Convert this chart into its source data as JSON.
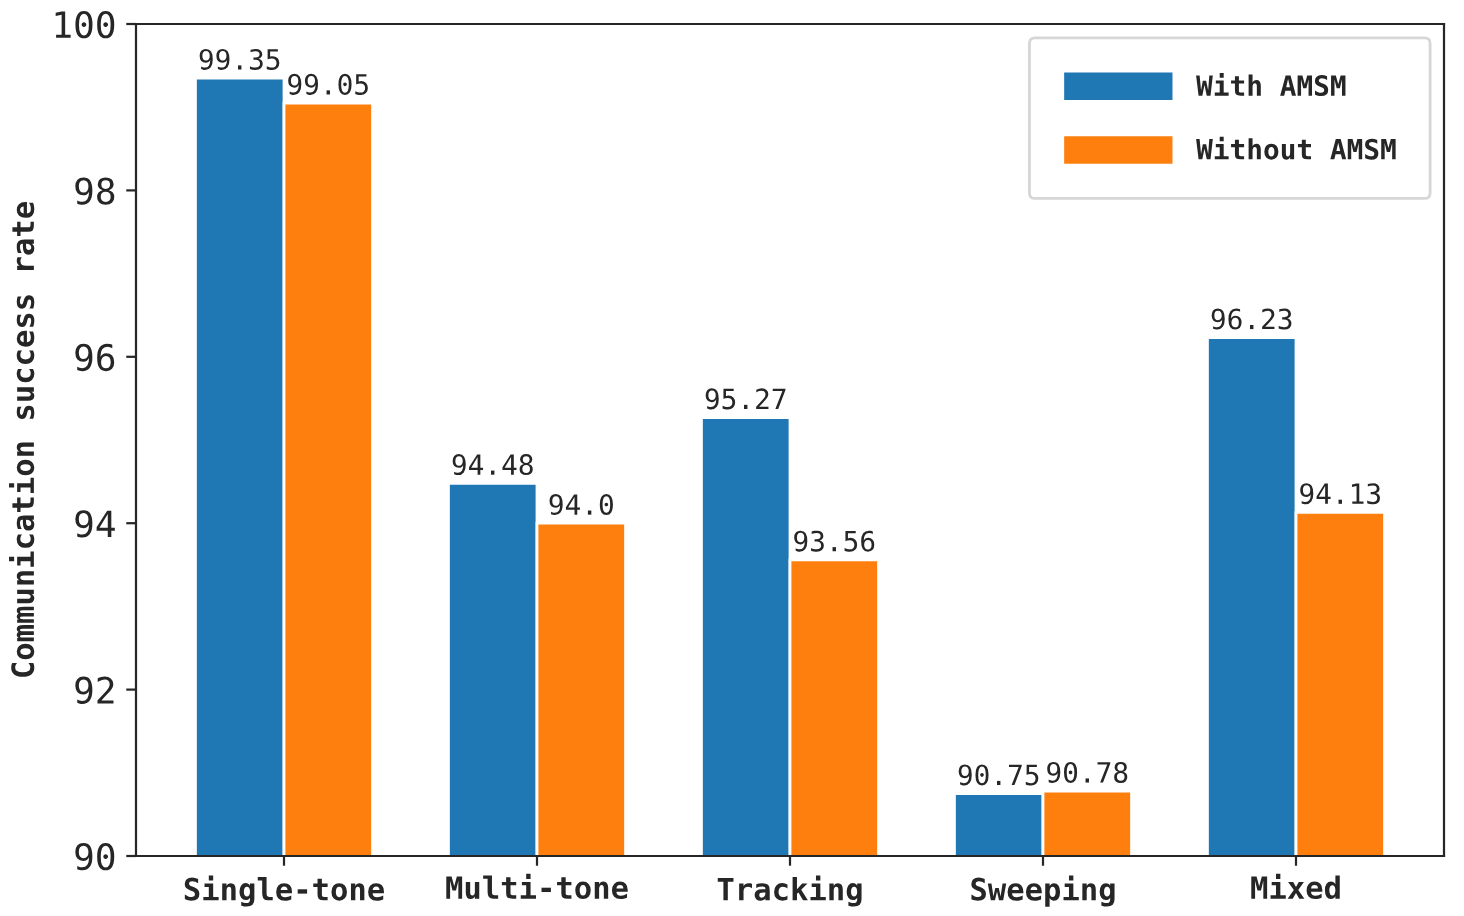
{
  "chart_data": {
    "type": "bar",
    "ylabel": "Communication success rate",
    "categories": [
      "Single-tone",
      "Multi-tone",
      "Tracking",
      "Sweeping",
      "Mixed"
    ],
    "series": [
      {
        "name": "With AMSM",
        "color": "#1f77b4",
        "values": [
          99.35,
          94.48,
          95.27,
          90.75,
          96.23
        ],
        "value_labels": [
          "99.35",
          "94.48",
          "95.27",
          "90.75",
          "96.23"
        ]
      },
      {
        "name": "Without AMSM",
        "color": "#ff7f0e",
        "values": [
          99.05,
          94.0,
          93.56,
          90.78,
          94.13
        ],
        "value_labels": [
          "99.05",
          "94.0",
          "93.56",
          "90.78",
          "94.13"
        ]
      }
    ],
    "ylim": [
      90,
      100
    ],
    "yticks": [
      90,
      92,
      94,
      96,
      98,
      100
    ],
    "legend": "top right",
    "grid": false
  }
}
